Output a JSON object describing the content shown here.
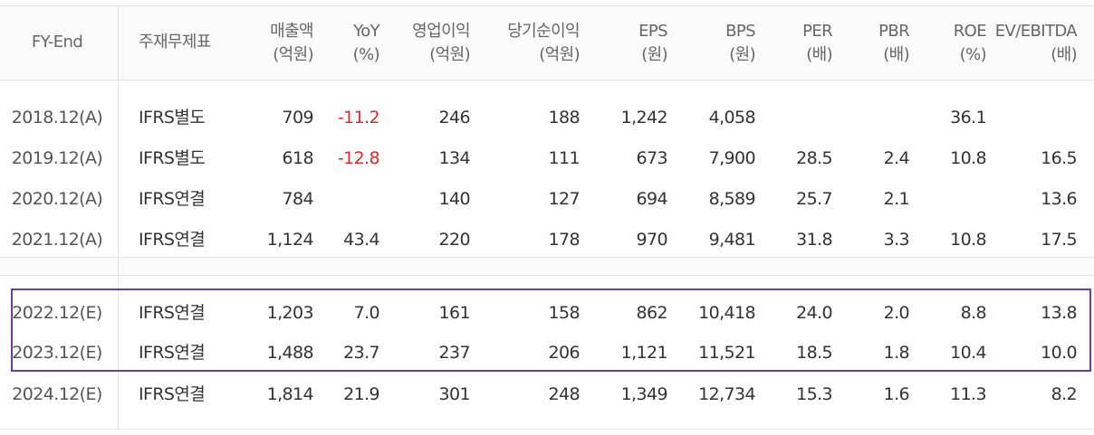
{
  "colors": {
    "highlight": "#6b3fa0",
    "negative": "#e0282e"
  },
  "headers": [
    {
      "line1": "FY-End",
      "line2": ""
    },
    {
      "line1": "주재무제표",
      "line2": ""
    },
    {
      "line1": "매출액",
      "line2": "(억원)"
    },
    {
      "line1": "YoY",
      "line2": "(%)"
    },
    {
      "line1": "영업이익",
      "line2": "(억원)"
    },
    {
      "line1": "당기순이익",
      "line2": "(억원)"
    },
    {
      "line1": "EPS",
      "line2": "(원)"
    },
    {
      "line1": "BPS",
      "line2": "(원)"
    },
    {
      "line1": "PER",
      "line2": "(배)"
    },
    {
      "line1": "PBR",
      "line2": "(배)"
    },
    {
      "line1": "ROE",
      "line2": "(%)"
    },
    {
      "line1": "EV/EBITDA",
      "line2": "(배)"
    }
  ],
  "rows": [
    [
      "2018.12(A)",
      "IFRS별도",
      "709",
      "-11.2",
      "246",
      "188",
      "1,242",
      "4,058",
      "",
      "",
      "36.1",
      ""
    ],
    [
      "2019.12(A)",
      "IFRS별도",
      "618",
      "-12.8",
      "134",
      "111",
      "673",
      "7,900",
      "28.5",
      "2.4",
      "10.8",
      "16.5"
    ],
    [
      "2020.12(A)",
      "IFRS연결",
      "784",
      "",
      "140",
      "127",
      "694",
      "8,589",
      "25.7",
      "2.1",
      "",
      "13.6"
    ],
    [
      "2021.12(A)",
      "IFRS연결",
      "1,124",
      "43.4",
      "220",
      "178",
      "970",
      "9,481",
      "31.8",
      "3.3",
      "10.8",
      "17.5"
    ],
    [
      "2022.12(E)",
      "IFRS연결",
      "1,203",
      "7.0",
      "161",
      "158",
      "862",
      "10,418",
      "24.0",
      "2.0",
      "8.8",
      "13.8"
    ],
    [
      "2023.12(E)",
      "IFRS연결",
      "1,488",
      "23.7",
      "237",
      "206",
      "1,121",
      "11,521",
      "18.5",
      "1.8",
      "10.4",
      "10.0"
    ],
    [
      "2024.12(E)",
      "IFRS연결",
      "1,814",
      "21.9",
      "301",
      "248",
      "1,349",
      "12,734",
      "15.3",
      "1.6",
      "11.3",
      "8.2"
    ]
  ],
  "highlighted_rows": [
    "2022.12(E)",
    "2023.12(E)"
  ]
}
